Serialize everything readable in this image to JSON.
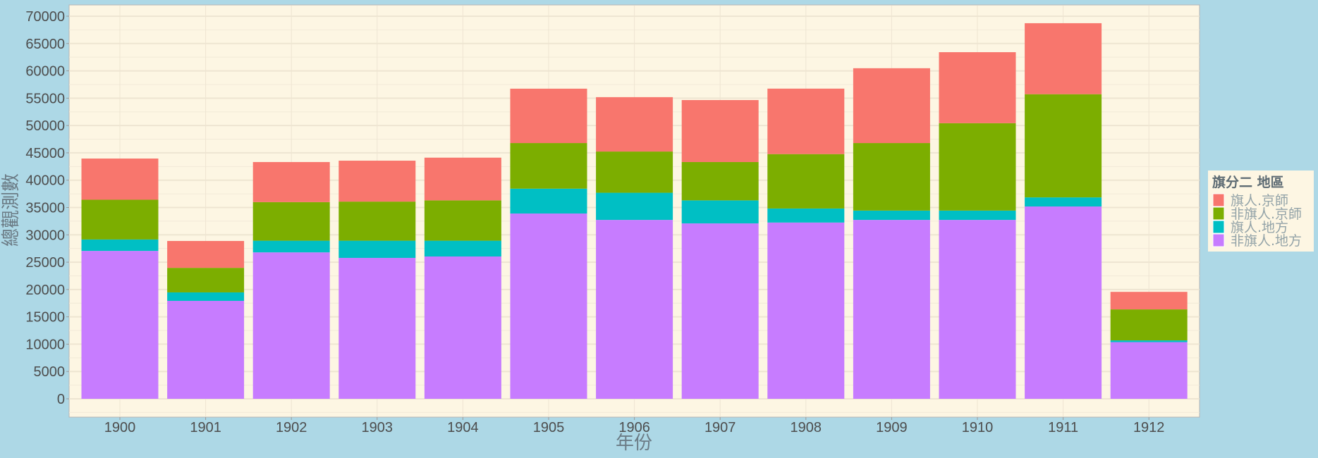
{
  "chart_data": {
    "type": "bar",
    "stacked": true,
    "title": "",
    "xlabel": "年份",
    "ylabel": "總觀測數",
    "ylim": [
      0,
      70000
    ],
    "yticks": [
      "0",
      "5000",
      "10000",
      "15000",
      "20000",
      "25000",
      "30000",
      "35000",
      "40000",
      "45000",
      "50000",
      "55000",
      "60000",
      "65000",
      "70000"
    ],
    "categories": [
      "1900",
      "1901",
      "1902",
      "1903",
      "1904",
      "1905",
      "1906",
      "1907",
      "1908",
      "1909",
      "1910",
      "1911",
      "1912"
    ],
    "legend_title": "旗分二 地區",
    "legend_position": "right",
    "grid": true,
    "series": [
      {
        "name": "非旗人.地方",
        "color": "#c77cff",
        "values": [
          27060,
          17920,
          26790,
          25780,
          26040,
          33900,
          32730,
          32090,
          32250,
          32730,
          32730,
          35190,
          10370
        ]
      },
      {
        "name": "旗人.地方",
        "color": "#00bfc4",
        "values": [
          2090,
          1550,
          2140,
          3150,
          2890,
          4550,
          4970,
          4220,
          2570,
          1710,
          1710,
          1660,
          320
        ]
      },
      {
        "name": "非旗人.京師",
        "color": "#7cae00",
        "values": [
          7270,
          4490,
          7060,
          7150,
          7380,
          8340,
          7540,
          7010,
          9950,
          12350,
          15990,
          18880,
          5670
        ]
      },
      {
        "name": "旗人.京師",
        "color": "#f8766d",
        "values": [
          7540,
          4920,
          7330,
          7490,
          7810,
          9950,
          9950,
          11340,
          11980,
          13690,
          12990,
          12990,
          3210
        ]
      }
    ],
    "legend_order": [
      "旗人.京師",
      "非旗人.京師",
      "旗人.地方",
      "非旗人.地方"
    ]
  }
}
